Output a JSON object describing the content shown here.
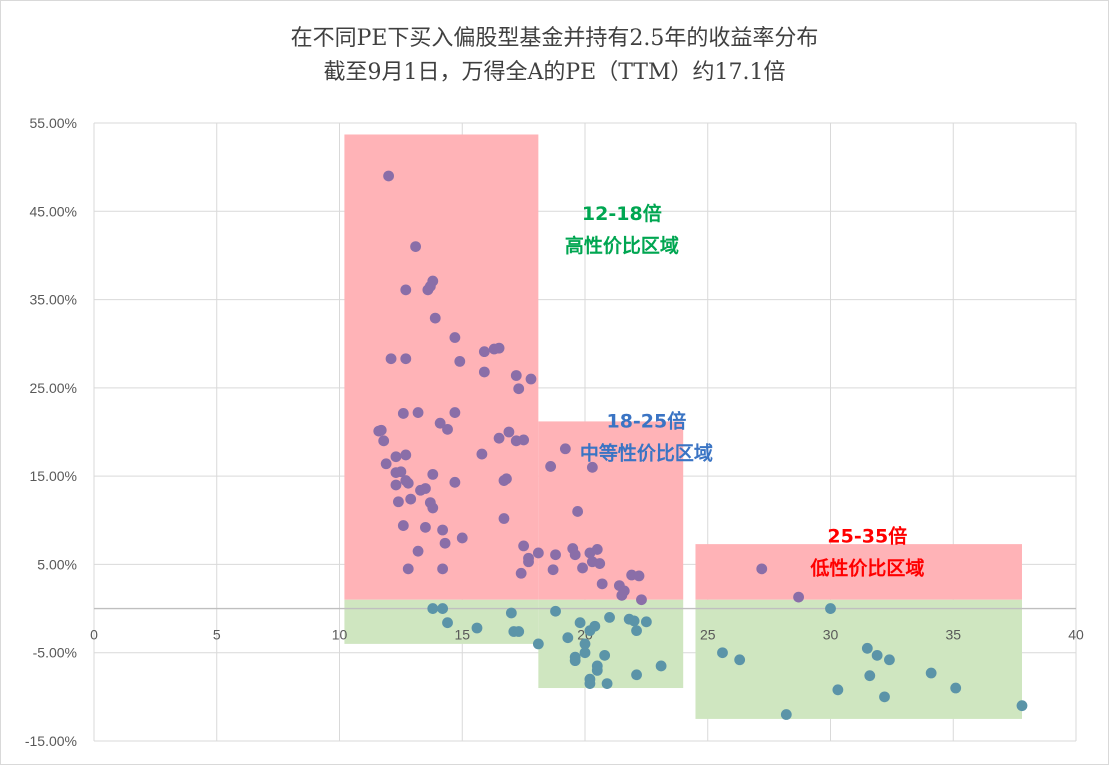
{
  "title": "在不同PE下买入偏股型基金并持有2.5年的收益率分布",
  "subtitle": "截至9月1日，万得全A的PE（TTM）约17.1倍",
  "colors": {
    "point": "#8a6ea8",
    "point_negative": "#5b94a8",
    "zone_high": "#ffb3b7",
    "zone_low": "#cfe6c0",
    "label_green": "#00a651",
    "label_blue": "#3a74c4",
    "label_red": "#ff0000",
    "grid": "#d9d9d9",
    "axis": "#bfbfbf"
  },
  "chart_data": {
    "type": "scatter",
    "title": "在不同PE下买入偏股型基金并持有2.5年的收益率分布",
    "subtitle": "截至9月1日，万得全A的PE（TTM）约17.1倍",
    "xlim": [
      0,
      40
    ],
    "ylim": [
      -0.15,
      0.55
    ],
    "x_ticks": [
      "0",
      "5",
      "10",
      "15",
      "20",
      "25",
      "30",
      "35",
      "40"
    ],
    "y_ticks": [
      "55.00%",
      "45.00%",
      "35.00%",
      "25.00%",
      "15.00%",
      "5.00%",
      "-5.00%",
      "-15.00%"
    ],
    "grid": true,
    "zones": [
      {
        "label_line1": "12-18倍",
        "label_line2": "高性价比区域",
        "label_color": "green",
        "x_range": [
          10.2,
          18.1
        ],
        "y_top": 0.537,
        "y_split": 0.01,
        "y_bottom": -0.04,
        "label_at": [
          21.5,
          0.44
        ]
      },
      {
        "label_line1": "18-25倍",
        "label_line2": "中等性价比区域",
        "label_color": "blue",
        "x_range": [
          18.1,
          24.0
        ],
        "y_top": 0.212,
        "y_split": 0.01,
        "y_bottom": -0.09,
        "label_at": [
          22.5,
          0.205
        ]
      },
      {
        "label_line1": "25-35倍",
        "label_line2": "低性价比区域",
        "label_color": "red",
        "x_range": [
          24.5,
          37.8
        ],
        "y_top": 0.073,
        "y_split": 0.01,
        "y_bottom": -0.125,
        "label_at": [
          31.5,
          0.075
        ]
      }
    ],
    "points": [
      [
        12.0,
        0.49
      ],
      [
        13.1,
        0.41
      ],
      [
        13.8,
        0.371
      ],
      [
        13.6,
        0.361
      ],
      [
        13.7,
        0.365
      ],
      [
        12.7,
        0.361
      ],
      [
        13.9,
        0.329
      ],
      [
        14.7,
        0.307
      ],
      [
        12.1,
        0.283
      ],
      [
        12.7,
        0.283
      ],
      [
        15.9,
        0.291
      ],
      [
        16.3,
        0.294
      ],
      [
        16.5,
        0.295
      ],
      [
        14.9,
        0.28
      ],
      [
        15.9,
        0.268
      ],
      [
        17.2,
        0.264
      ],
      [
        17.8,
        0.26
      ],
      [
        17.3,
        0.249
      ],
      [
        12.6,
        0.221
      ],
      [
        13.2,
        0.222
      ],
      [
        14.7,
        0.222
      ],
      [
        14.1,
        0.21
      ],
      [
        14.4,
        0.203
      ],
      [
        11.6,
        0.201
      ],
      [
        11.7,
        0.202
      ],
      [
        11.8,
        0.19
      ],
      [
        16.9,
        0.2
      ],
      [
        16.5,
        0.193
      ],
      [
        17.2,
        0.19
      ],
      [
        17.5,
        0.191
      ],
      [
        12.3,
        0.172
      ],
      [
        12.7,
        0.174
      ],
      [
        15.8,
        0.175
      ],
      [
        11.9,
        0.164
      ],
      [
        12.3,
        0.154
      ],
      [
        12.5,
        0.155
      ],
      [
        13.8,
        0.152
      ],
      [
        12.7,
        0.145
      ],
      [
        12.8,
        0.142
      ],
      [
        12.3,
        0.14
      ],
      [
        13.3,
        0.134
      ],
      [
        13.5,
        0.136
      ],
      [
        14.7,
        0.143
      ],
      [
        16.7,
        0.145
      ],
      [
        16.8,
        0.147
      ],
      [
        12.4,
        0.121
      ],
      [
        12.9,
        0.124
      ],
      [
        13.7,
        0.12
      ],
      [
        13.8,
        0.114
      ],
      [
        16.7,
        0.102
      ],
      [
        12.6,
        0.094
      ],
      [
        13.5,
        0.092
      ],
      [
        14.2,
        0.089
      ],
      [
        15.0,
        0.08
      ],
      [
        14.3,
        0.074
      ],
      [
        17.5,
        0.071
      ],
      [
        13.2,
        0.065
      ],
      [
        17.7,
        0.057
      ],
      [
        17.7,
        0.053
      ],
      [
        18.1,
        0.063
      ],
      [
        12.8,
        0.045
      ],
      [
        14.2,
        0.045
      ],
      [
        17.4,
        0.04
      ],
      [
        18.6,
        0.161
      ],
      [
        19.2,
        0.181
      ],
      [
        20.3,
        0.16
      ],
      [
        19.7,
        0.11
      ],
      [
        18.8,
        0.061
      ],
      [
        19.5,
        0.068
      ],
      [
        19.6,
        0.061
      ],
      [
        20.2,
        0.063
      ],
      [
        20.5,
        0.067
      ],
      [
        20.3,
        0.053
      ],
      [
        20.6,
        0.051
      ],
      [
        19.9,
        0.046
      ],
      [
        18.7,
        0.044
      ],
      [
        21.9,
        0.038
      ],
      [
        22.2,
        0.037
      ],
      [
        20.7,
        0.028
      ],
      [
        21.4,
        0.026
      ],
      [
        21.6,
        0.02
      ],
      [
        21.5,
        0.015
      ],
      [
        22.3,
        0.01
      ],
      [
        27.2,
        0.045
      ],
      [
        28.7,
        0.013
      ],
      [
        13.8,
        0.0
      ],
      [
        14.2,
        0.0
      ],
      [
        18.8,
        -0.003
      ],
      [
        17.0,
        -0.005
      ],
      [
        21.0,
        -0.01
      ],
      [
        14.4,
        -0.016
      ],
      [
        19.8,
        -0.016
      ],
      [
        15.6,
        -0.022
      ],
      [
        17.1,
        -0.026
      ],
      [
        17.3,
        -0.026
      ],
      [
        20.4,
        -0.02
      ],
      [
        21.8,
        -0.012
      ],
      [
        22.0,
        -0.014
      ],
      [
        22.5,
        -0.015
      ],
      [
        20.2,
        -0.025
      ],
      [
        19.3,
        -0.033
      ],
      [
        20.0,
        -0.04
      ],
      [
        18.1,
        -0.04
      ],
      [
        22.1,
        -0.025
      ],
      [
        20.0,
        -0.05
      ],
      [
        19.6,
        -0.055
      ],
      [
        19.6,
        -0.059
      ],
      [
        20.8,
        -0.053
      ],
      [
        20.5,
        -0.065
      ],
      [
        20.5,
        -0.07
      ],
      [
        23.1,
        -0.065
      ],
      [
        22.1,
        -0.075
      ],
      [
        20.2,
        -0.08
      ],
      [
        20.2,
        -0.085
      ],
      [
        20.9,
        -0.085
      ],
      [
        25.6,
        -0.05
      ],
      [
        26.3,
        -0.058
      ],
      [
        30.0,
        0.0
      ],
      [
        31.5,
        -0.045
      ],
      [
        31.9,
        -0.053
      ],
      [
        32.4,
        -0.058
      ],
      [
        31.6,
        -0.076
      ],
      [
        34.1,
        -0.073
      ],
      [
        30.3,
        -0.092
      ],
      [
        32.2,
        -0.1
      ],
      [
        35.1,
        -0.09
      ],
      [
        28.2,
        -0.12
      ],
      [
        37.8,
        -0.11
      ]
    ]
  }
}
